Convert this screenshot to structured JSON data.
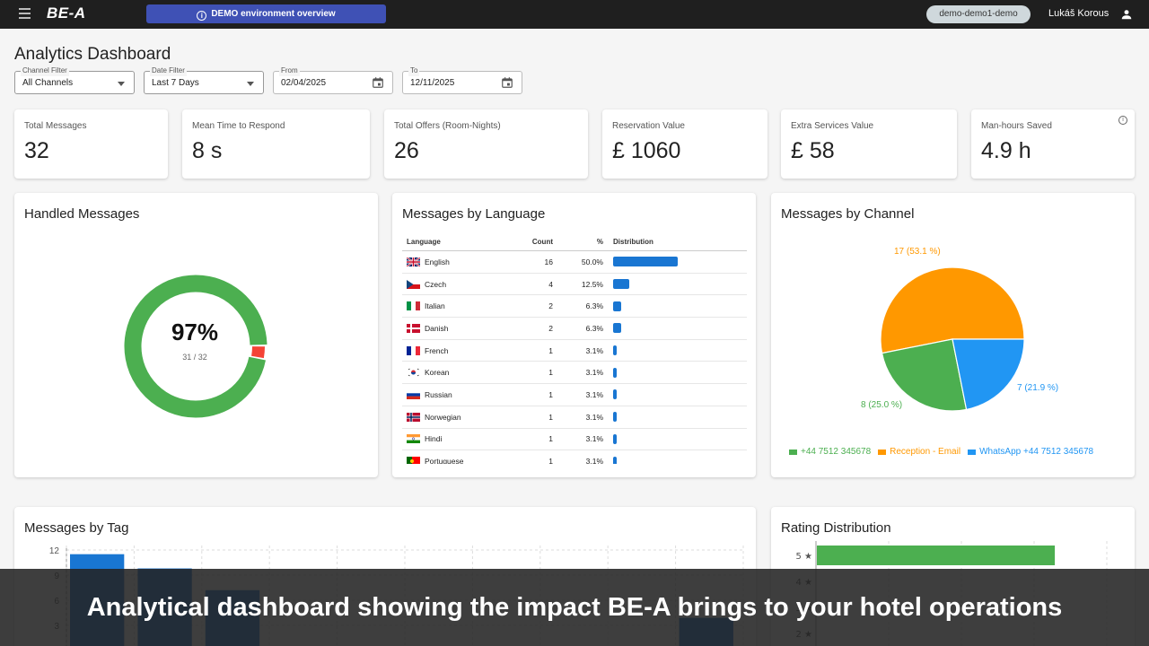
{
  "topbar": {
    "logo": "BE-A",
    "demo_banner": "DEMO environment overview",
    "env_chip": "demo-demo1-demo",
    "user_name": "Lukáš Korous"
  },
  "header": {
    "title": "Analytics Dashboard",
    "channel_filter": {
      "label": "Channel Filter",
      "value": "All Channels"
    },
    "date_filter": {
      "label": "Date Filter",
      "value": "Last 7 Days"
    },
    "from": {
      "label": "From",
      "value": "02/04/2025"
    },
    "to": {
      "label": "To",
      "value": "12/11/2025"
    }
  },
  "kpis": [
    {
      "label": "Total Messages",
      "value": "32"
    },
    {
      "label": "Mean Time to Respond",
      "value": "8 s"
    },
    {
      "label": "Total Offers (Room-Nights)",
      "value": "26"
    },
    {
      "label": "Reservation Value",
      "value": "£ 1060"
    },
    {
      "label": "Extra Services Value",
      "value": "£ 58"
    },
    {
      "label": "Man-hours Saved",
      "value": "4.9 h"
    }
  ],
  "handled": {
    "title": "Handled Messages",
    "percent": "97%",
    "ratio": "31 / 32",
    "handled": 31,
    "total": 32,
    "colors": {
      "handled": "#4caf50",
      "unhandled": "#f44336"
    }
  },
  "language": {
    "title": "Messages by Language",
    "headers": {
      "language": "Language",
      "count": "Count",
      "pct": "%",
      "dist": "Distribution"
    },
    "rows": [
      {
        "name": "English",
        "count": "16",
        "pct": "50.0%",
        "share": 0.5,
        "flag": "gb"
      },
      {
        "name": "Czech",
        "count": "4",
        "pct": "12.5%",
        "share": 0.125,
        "flag": "cz"
      },
      {
        "name": "Italian",
        "count": "2",
        "pct": "6.3%",
        "share": 0.063,
        "flag": "it"
      },
      {
        "name": "Danish",
        "count": "2",
        "pct": "6.3%",
        "share": 0.063,
        "flag": "dk"
      },
      {
        "name": "French",
        "count": "1",
        "pct": "3.1%",
        "share": 0.031,
        "flag": "fr"
      },
      {
        "name": "Korean",
        "count": "1",
        "pct": "3.1%",
        "share": 0.031,
        "flag": "kr"
      },
      {
        "name": "Russian",
        "count": "1",
        "pct": "3.1%",
        "share": 0.031,
        "flag": "ru"
      },
      {
        "name": "Norwegian",
        "count": "1",
        "pct": "3.1%",
        "share": 0.031,
        "flag": "no"
      },
      {
        "name": "Hindi",
        "count": "1",
        "pct": "3.1%",
        "share": 0.031,
        "flag": "in"
      },
      {
        "name": "Portuguese",
        "count": "1",
        "pct": "3.1%",
        "share": 0.031,
        "flag": "pt"
      }
    ]
  },
  "channel": {
    "title": "Messages by Channel",
    "slices": [
      {
        "label": "Reception - Email",
        "value": 17,
        "text": "17 (53.1 %)",
        "color": "#ff9800"
      },
      {
        "label": "WhatsApp +44 7512 345678",
        "value": 7,
        "text": "7 (21.9 %)",
        "color": "#2196f3"
      },
      {
        "label": "+44 7512 345678",
        "value": 8,
        "text": "8 (25.0 %)",
        "color": "#4caf50"
      }
    ],
    "legend": [
      {
        "label": "+44 7512 345678",
        "color": "#4caf50"
      },
      {
        "label": "Reception - Email",
        "color": "#ff9800"
      },
      {
        "label": "WhatsApp +44 7512 345678",
        "color": "#2196f3"
      }
    ]
  },
  "chart_data": [
    {
      "type": "bar",
      "title": "Messages by Tag",
      "yticks": [
        "12",
        "9",
        "6",
        "3"
      ],
      "ylim": [
        0,
        12
      ],
      "values": [
        11.5,
        9.8,
        7.2,
        0,
        0,
        0,
        0,
        0,
        0,
        3.9
      ],
      "color": "#1976d2"
    },
    {
      "type": "bar",
      "orientation": "horizontal",
      "title": "Rating Distribution",
      "categories": [
        "5 ★",
        "4 ★",
        "3 ★",
        "2 ★"
      ],
      "values": [
        9,
        0,
        0,
        0
      ],
      "xlim": [
        0,
        11
      ],
      "color": "#4caf50"
    }
  ],
  "caption": "Analytical dashboard showing the impact BE-A brings to your hotel operations"
}
